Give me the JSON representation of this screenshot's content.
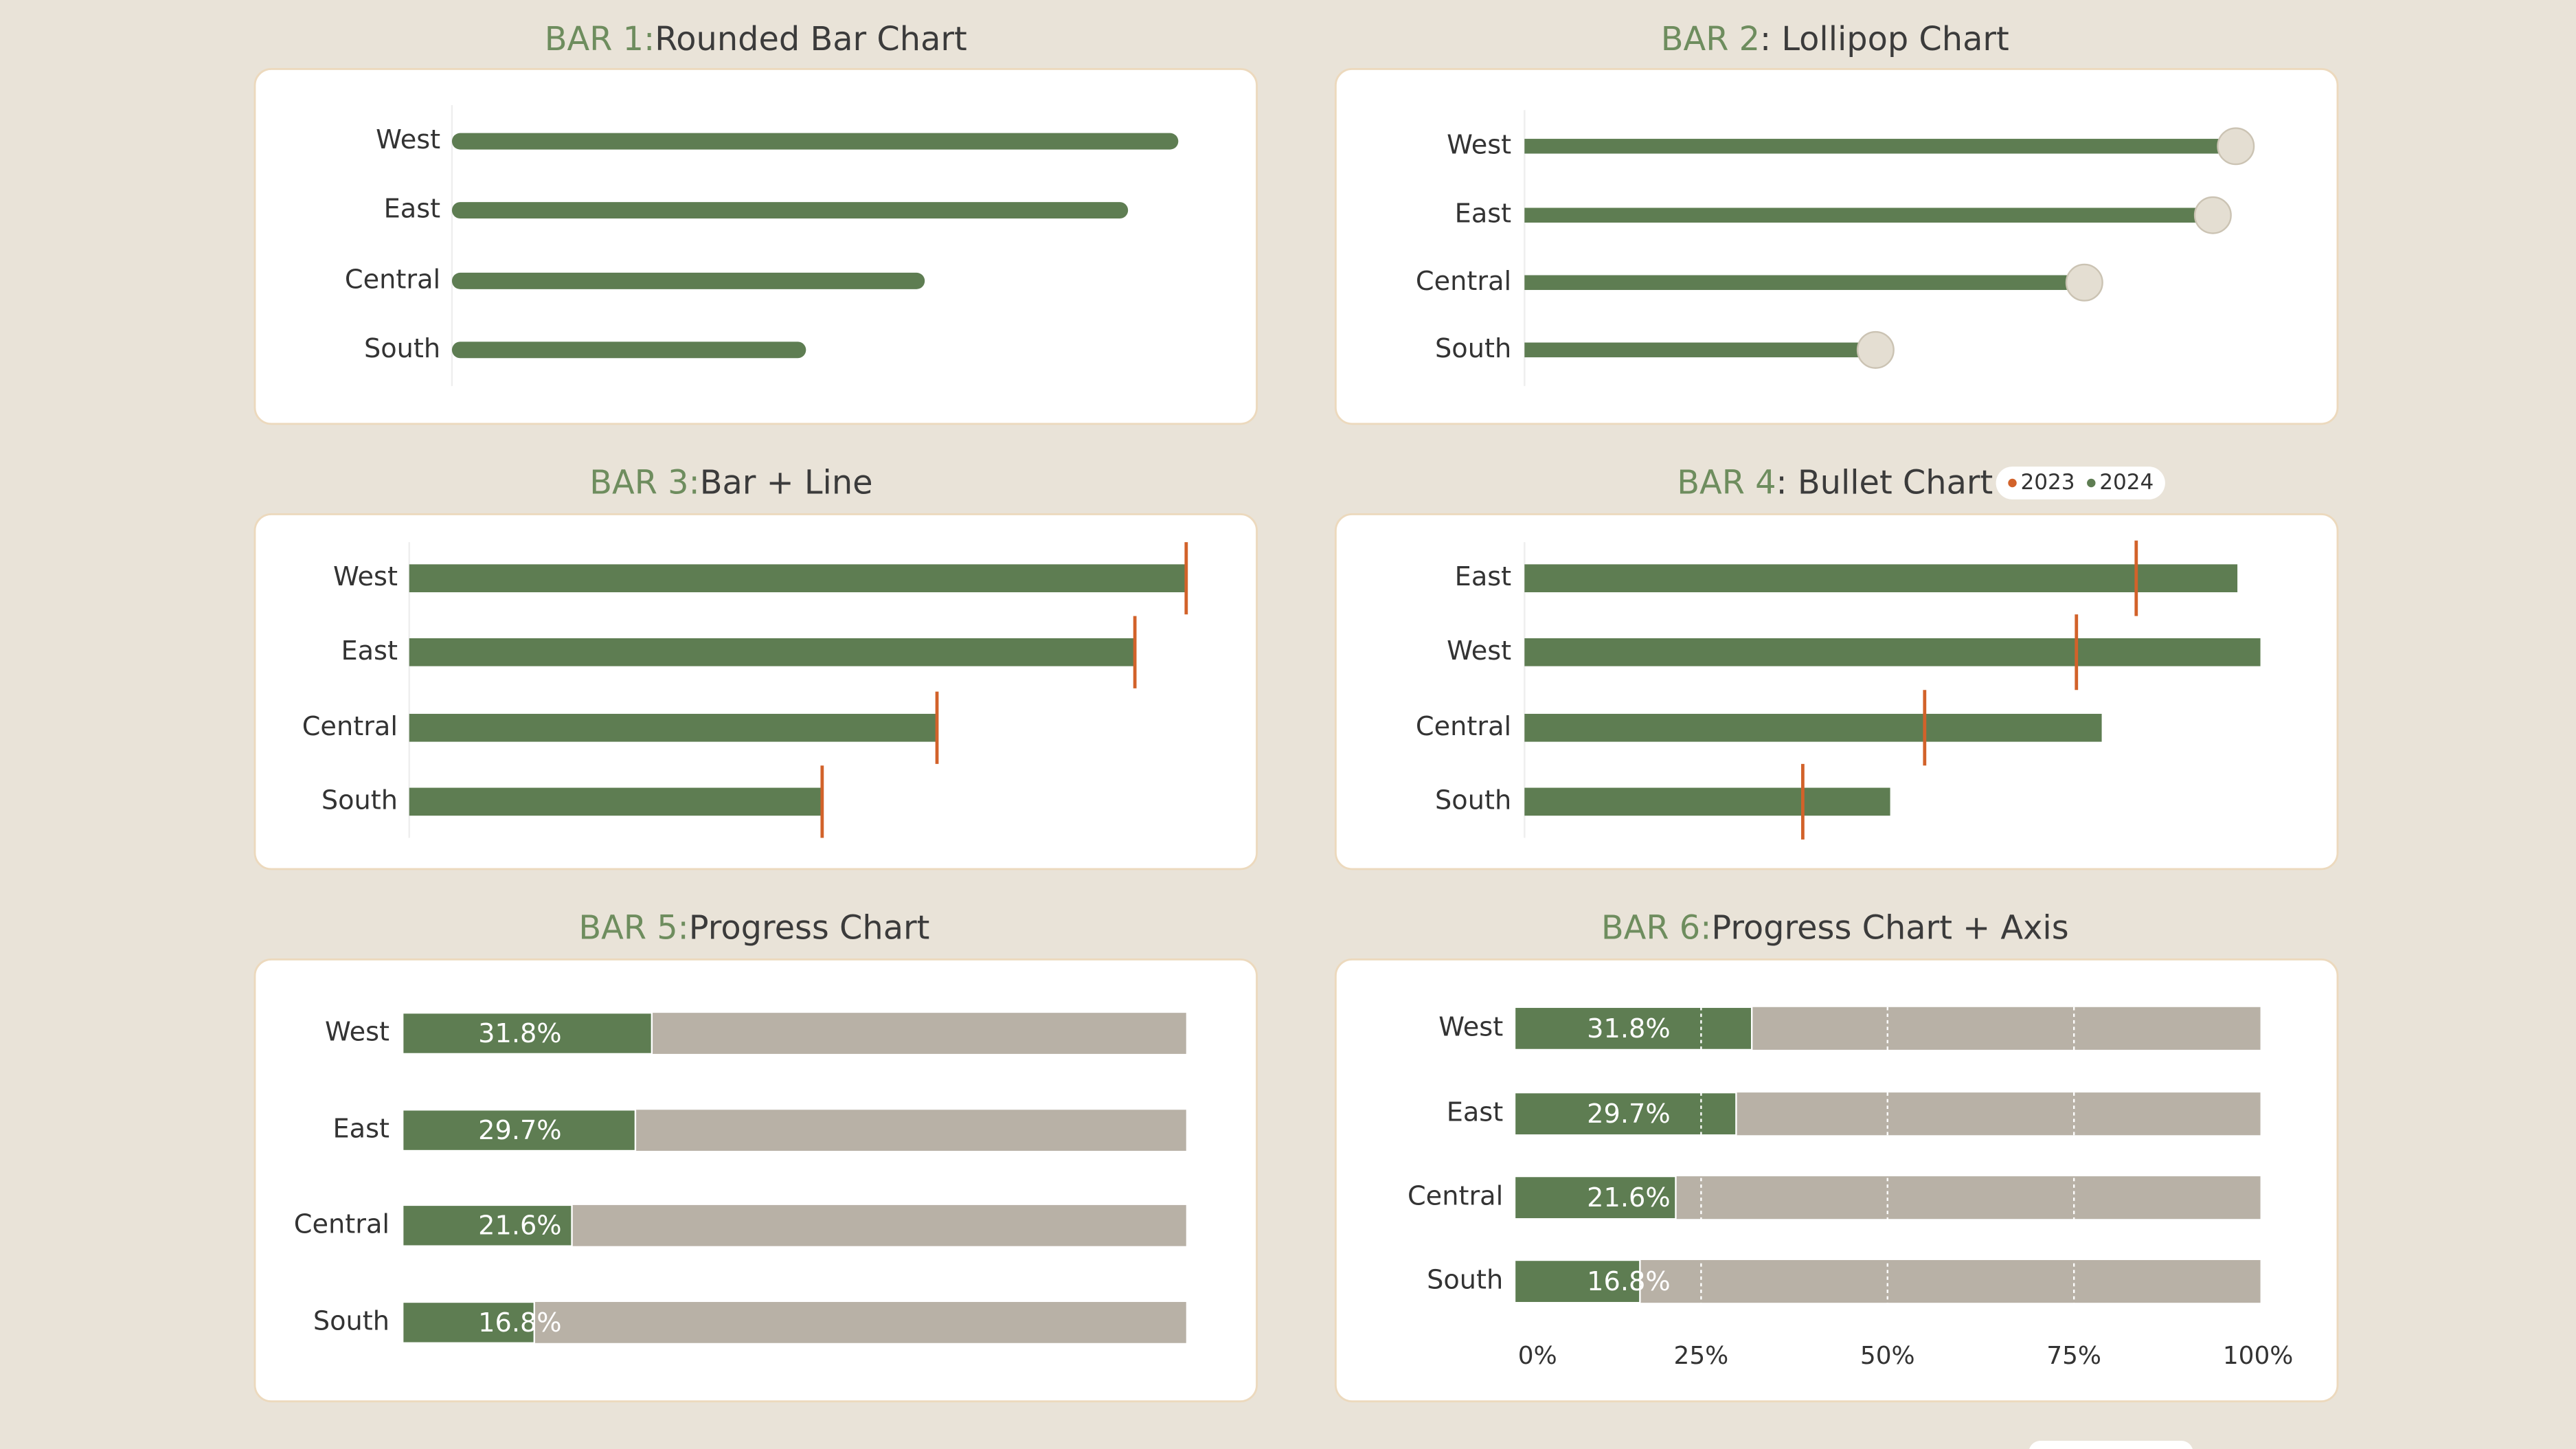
{
  "chart_data": [
    {
      "type": "bar",
      "label": "BAR 1:",
      "title": "Rounded Bar Chart",
      "rounded": true,
      "categories": [
        "West",
        "East",
        "Central",
        "South"
      ],
      "values": [
        31.8,
        29.6,
        20.7,
        15.5
      ],
      "color": "#5e7d52",
      "xlim": [
        0,
        32
      ]
    },
    {
      "type": "lollipop",
      "label": "BAR 2",
      "title": ": Lollipop Chart",
      "categories": [
        "West",
        "East",
        "Central",
        "South"
      ],
      "values": [
        31.0,
        30.0,
        24.4,
        15.3
      ],
      "color": "#5e7d52",
      "marker_color": "#e4ded2",
      "xlim": [
        0,
        32
      ]
    },
    {
      "type": "bar",
      "label": "BAR 3:",
      "title": "Bar + Line",
      "end_marker": true,
      "categories": [
        "West",
        "East",
        "Central",
        "South"
      ],
      "values": [
        31.8,
        29.7,
        21.6,
        16.9
      ],
      "color": "#5e7d52",
      "marker_color": "#d2622a",
      "xlim": [
        0,
        32
      ]
    },
    {
      "type": "bullet",
      "label": "BAR 4",
      "title": ": Bullet Chart",
      "categories": [
        "East",
        "West",
        "Central",
        "South"
      ],
      "series": [
        {
          "name": "2023",
          "color": "#d2622a",
          "values": [
            26.6,
            24.0,
            17.4,
            12.1
          ]
        },
        {
          "name": "2024",
          "color": "#5e7d52",
          "values": [
            31.0,
            32.0,
            25.1,
            15.9
          ]
        }
      ],
      "xlim": [
        0,
        32
      ]
    },
    {
      "type": "progress",
      "label": "BAR 5:",
      "title": "Progress Chart",
      "categories": [
        "West",
        "East",
        "Central",
        "South"
      ],
      "values": [
        31.8,
        29.7,
        21.6,
        16.8
      ],
      "value_labels": [
        "31.8%",
        "29.7%",
        "21.6%",
        "16.8%"
      ],
      "color": "#5e7d52",
      "track_color": "#b8b1a6",
      "xlim": [
        0,
        100
      ]
    },
    {
      "type": "progress",
      "label": "BAR 6:",
      "title": "Progress Chart + Axis",
      "categories": [
        "West",
        "East",
        "Central",
        "South"
      ],
      "values": [
        31.8,
        29.7,
        21.6,
        16.8
      ],
      "value_labels": [
        "31.8%",
        "29.7%",
        "21.6%",
        "16.8%"
      ],
      "color": "#5e7d52",
      "track_color": "#b8b1a6",
      "xlim": [
        0,
        100
      ],
      "xticks": [
        {
          "value": 0,
          "label": "0%"
        },
        {
          "value": 25,
          "label": "25%"
        },
        {
          "value": 50,
          "label": "50%"
        },
        {
          "value": 75,
          "label": "75%"
        },
        {
          "value": 100,
          "label": "100%"
        }
      ],
      "grid": true
    }
  ]
}
